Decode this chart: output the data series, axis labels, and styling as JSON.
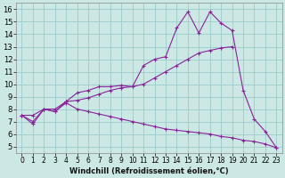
{
  "title": "",
  "xlabel": "Windchill (Refroidissement éolien,°C)",
  "background_color": "#cce8e4",
  "grid_color": "#99cccc",
  "line_color": "#882299",
  "x": [
    0,
    1,
    2,
    3,
    4,
    5,
    6,
    7,
    8,
    9,
    10,
    11,
    12,
    13,
    14,
    15,
    16,
    17,
    18,
    19,
    20,
    21,
    22,
    23
  ],
  "series": [
    {
      "x": [
        0,
        1,
        2,
        3,
        4,
        5,
        6,
        7,
        8,
        9,
        10,
        11,
        12,
        13,
        14,
        15,
        16,
        17,
        18,
        19,
        20,
        21,
        22,
        23
      ],
      "y": [
        7.5,
        6.8,
        8.0,
        7.8,
        8.6,
        9.3,
        9.5,
        9.8,
        9.8,
        9.9,
        9.8,
        11.5,
        12.0,
        12.2,
        14.5,
        15.8,
        14.1,
        15.8,
        14.9,
        14.3,
        9.5,
        7.2,
        6.2,
        4.9
      ]
    },
    {
      "x": [
        0,
        1,
        2,
        3,
        4,
        5,
        6,
        7,
        8,
        9,
        10,
        11,
        12,
        13,
        14,
        15,
        16,
        17,
        18,
        19
      ],
      "y": [
        7.5,
        7.5,
        8.0,
        8.0,
        8.6,
        8.7,
        8.9,
        9.2,
        9.5,
        9.7,
        9.8,
        10.0,
        10.5,
        11.0,
        11.5,
        12.0,
        12.5,
        12.7,
        12.9,
        13.0
      ]
    },
    {
      "x": [
        0,
        1,
        2,
        3,
        4,
        5,
        6,
        7,
        8,
        9,
        10,
        11,
        12,
        13,
        14,
        15,
        16,
        17,
        18,
        19,
        20,
        21,
        22,
        23
      ],
      "y": [
        7.5,
        7.0,
        8.0,
        7.8,
        8.5,
        8.0,
        7.8,
        7.6,
        7.4,
        7.2,
        7.0,
        6.8,
        6.6,
        6.4,
        6.3,
        6.2,
        6.1,
        6.0,
        5.8,
        5.7,
        5.5,
        5.4,
        5.2,
        4.9
      ]
    }
  ],
  "xlim": [
    -0.5,
    23.5
  ],
  "ylim": [
    4.5,
    16.5
  ],
  "yticks": [
    5,
    6,
    7,
    8,
    9,
    10,
    11,
    12,
    13,
    14,
    15,
    16
  ],
  "xticks": [
    0,
    1,
    2,
    3,
    4,
    5,
    6,
    7,
    8,
    9,
    10,
    11,
    12,
    13,
    14,
    15,
    16,
    17,
    18,
    19,
    20,
    21,
    22,
    23
  ]
}
